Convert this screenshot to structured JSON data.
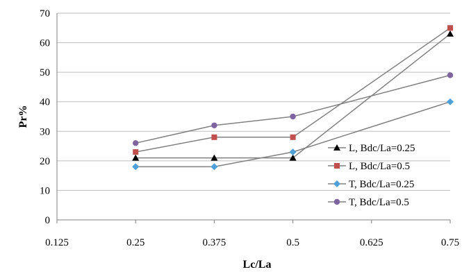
{
  "chart_data": {
    "type": "line",
    "xlabel": "Lc/La",
    "ylabel": "Pr%",
    "x_ticks": [
      "0.125",
      "0.25",
      "0.375",
      "0.5",
      "0.625",
      "0.75"
    ],
    "y_ticks": [
      "0",
      "10",
      "20",
      "30",
      "40",
      "50",
      "60",
      "70"
    ],
    "xlim": [
      0.125,
      0.75
    ],
    "ylim": [
      0,
      70
    ],
    "grid": "horizontal",
    "legend_position": "right",
    "x": [
      0.25,
      0.375,
      0.5,
      0.75
    ],
    "series": [
      {
        "name": "L, Bdc/La=0.25",
        "marker": "triangle",
        "color": "#000000",
        "values": [
          21,
          21,
          21,
          63
        ]
      },
      {
        "name": "L, Bdc/La=0.5",
        "marker": "square",
        "color": "#c0504d",
        "values": [
          23,
          28,
          28,
          65
        ]
      },
      {
        "name": "T, Bdc/La=0.25",
        "marker": "diamond",
        "color": "#4f9fd8",
        "values": [
          18,
          18,
          23,
          40
        ]
      },
      {
        "name": "T, Bdc/La=0.5",
        "marker": "circle",
        "color": "#8064a2",
        "values": [
          26,
          32,
          35,
          49
        ]
      }
    ],
    "line_color": "#808080"
  }
}
